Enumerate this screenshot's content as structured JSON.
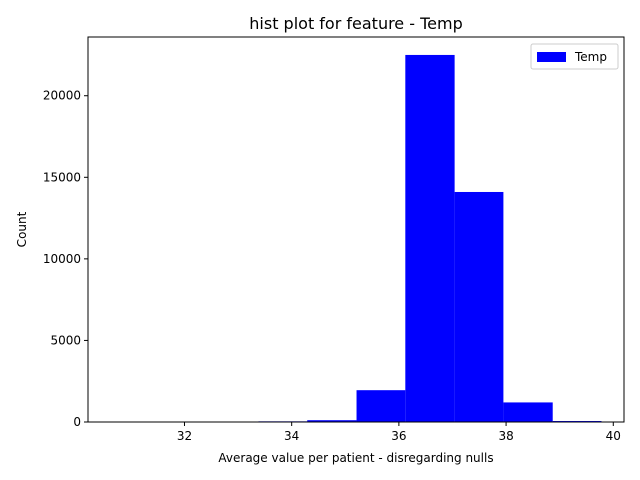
{
  "chart_data": {
    "type": "bar",
    "title": "hist plot for feature -  Temp",
    "xlabel": "Average value per patient - disregarding nulls",
    "ylabel": "Count",
    "xlim": [
      30.2,
      40.2
    ],
    "ylim": [
      0,
      23600
    ],
    "xticks": [
      32,
      34,
      36,
      38,
      40
    ],
    "yticks": [
      0,
      5000,
      10000,
      15000,
      20000
    ],
    "grid": false,
    "legend_position": "top-right",
    "bar_color": "#0000ff",
    "series": [
      {
        "name": "Temp",
        "bins": [
          {
            "x0": 30.63,
            "x1": 31.55,
            "count": 2
          },
          {
            "x0": 31.55,
            "x1": 32.46,
            "count": 8
          },
          {
            "x0": 32.46,
            "x1": 33.38,
            "count": 30
          },
          {
            "x0": 33.38,
            "x1": 34.29,
            "count": 40
          },
          {
            "x0": 34.29,
            "x1": 35.21,
            "count": 110
          },
          {
            "x0": 35.21,
            "x1": 36.12,
            "count": 1950
          },
          {
            "x0": 36.12,
            "x1": 37.04,
            "count": 22500
          },
          {
            "x0": 37.04,
            "x1": 37.95,
            "count": 14100
          },
          {
            "x0": 37.95,
            "x1": 38.87,
            "count": 1200
          },
          {
            "x0": 38.87,
            "x1": 39.78,
            "count": 60
          }
        ]
      }
    ]
  }
}
